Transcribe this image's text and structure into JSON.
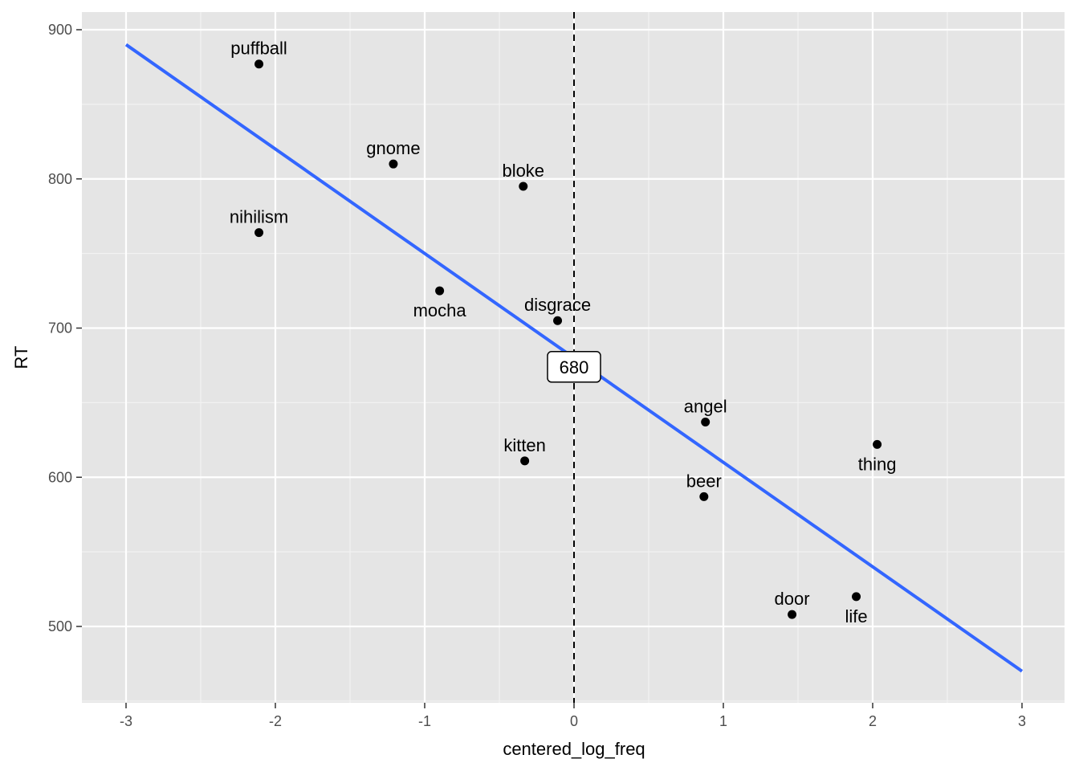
{
  "chart_data": {
    "type": "scatter",
    "xlabel": "centered_log_freq",
    "ylabel": "RT",
    "xlim": [
      -3.3,
      3.3
    ],
    "ylim": [
      450,
      920
    ],
    "x_ticks": [
      -3,
      -2,
      -1,
      0,
      1,
      2,
      3
    ],
    "x_tick_labels": [
      "-3",
      "-2",
      "-1",
      "0",
      "1",
      "2",
      "3"
    ],
    "y_ticks": [
      500,
      600,
      700,
      800,
      900
    ],
    "y_tick_labels": [
      "500",
      "600",
      "700",
      "800",
      "900"
    ],
    "grid": true,
    "points": [
      {
        "label": "puffball",
        "x": -2.11,
        "y": 877,
        "label_pos": "above"
      },
      {
        "label": "gnome",
        "x": -1.21,
        "y": 810,
        "label_pos": "above"
      },
      {
        "label": "bloke",
        "x": -0.34,
        "y": 795,
        "label_pos": "above"
      },
      {
        "label": "nihilism",
        "x": -2.11,
        "y": 764,
        "label_pos": "above"
      },
      {
        "label": "mocha",
        "x": -0.9,
        "y": 725,
        "label_pos": "below"
      },
      {
        "label": "disgrace",
        "x": -0.11,
        "y": 705,
        "label_pos": "above"
      },
      {
        "label": "angel",
        "x": 0.88,
        "y": 637,
        "label_pos": "above"
      },
      {
        "label": "kitten",
        "x": -0.33,
        "y": 611,
        "label_pos": "above"
      },
      {
        "label": "thing",
        "x": 2.03,
        "y": 622,
        "label_pos": "below"
      },
      {
        "label": "beer",
        "x": 0.87,
        "y": 587,
        "label_pos": "above"
      },
      {
        "label": "door",
        "x": 1.46,
        "y": 508,
        "label_pos": "above"
      },
      {
        "label": "life",
        "x": 1.89,
        "y": 520,
        "label_pos": "below"
      }
    ],
    "regression_line": {
      "x": [
        -3,
        3
      ],
      "y": [
        890,
        470
      ],
      "color": "#3366ff"
    },
    "vline": {
      "x": 0,
      "style": "dashed"
    },
    "callout": {
      "text": "680",
      "x": 0,
      "y": 674
    }
  }
}
